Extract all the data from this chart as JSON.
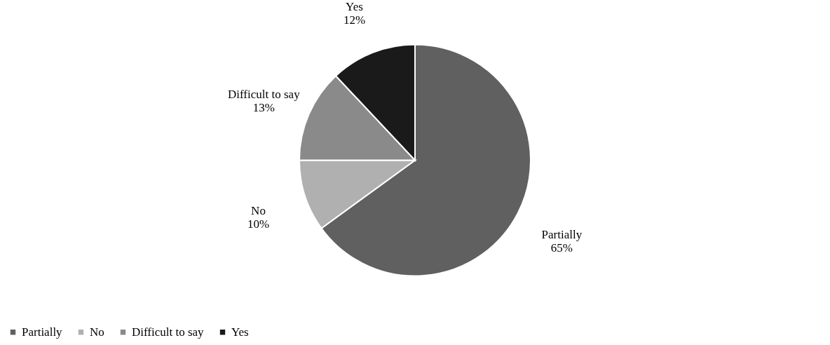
{
  "chart_data": {
    "type": "pie",
    "categories": [
      "Partially",
      "No",
      "Difficult to say",
      "Yes"
    ],
    "values": [
      65,
      10,
      13,
      12
    ],
    "colors": [
      "#606060",
      "#b0b0b0",
      "#8a8a8a",
      "#1a1a1a"
    ],
    "value_labels": [
      "65%",
      "10%",
      "13%",
      "12%"
    ],
    "legend": "bottom"
  }
}
